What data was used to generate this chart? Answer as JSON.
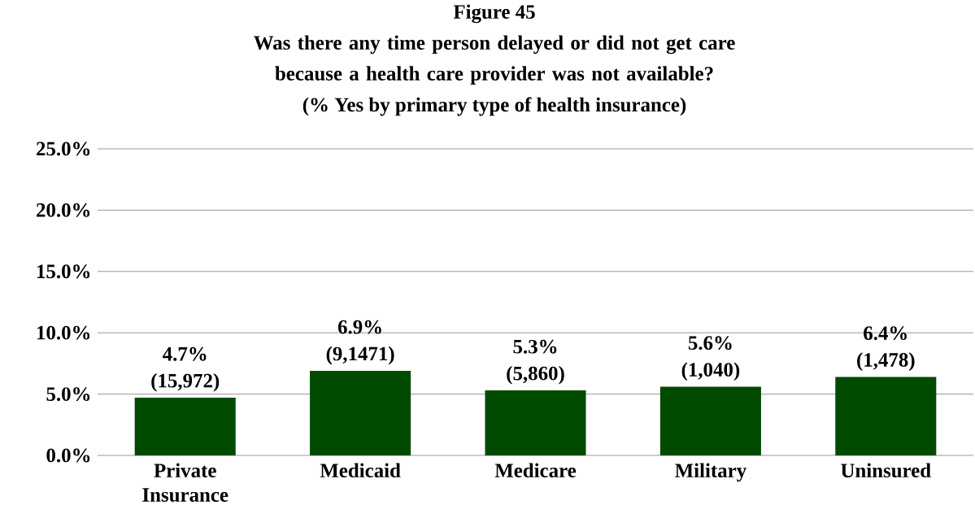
{
  "chart_data": {
    "type": "bar",
    "title": "Figure 45",
    "subtitle": "Was there any time person delayed or did not get care because a health care provider was not available?",
    "categories": [
      "Private Insurance",
      "Medicaid",
      "Medicare",
      "Military",
      "Uninsured"
    ],
    "values": [
      4.7,
      6.9,
      5.3,
      5.6,
      6.4
    ],
    "color": "#004b00",
    "value_labels": [
      "4.7%",
      "6.9%",
      "5.3%",
      "5.6%",
      "6.4%"
    ],
    "annotations": [
      "(% Yes by primary type of health insurance)",
      {
        "text": "(15,972)",
        "x": "Private Insurance",
        "y": 4.7
      },
      {
        "text": "(9,1471)",
        "x": "Medicaid",
        "y": 6.9
      },
      {
        "text": "(5,860)",
        "x": "Medicare",
        "y": 5.3
      },
      {
        "text": "(1,040)",
        "x": "Military",
        "y": 5.6
      },
      {
        "text": "(1,478)",
        "x": "Uninsured",
        "y": 6.4
      }
    ],
    "ylim": [
      0,
      25
    ],
    "yticks": [
      {
        "value": 0,
        "label": "0.0%"
      },
      {
        "value": 5,
        "label": "5.0%"
      },
      {
        "value": 10,
        "label": "10.0%"
      },
      {
        "value": 15,
        "label": "15.0%"
      },
      {
        "value": 20,
        "label": "20.0%"
      },
      {
        "value": 25,
        "label": "25.0%"
      }
    ],
    "grid": "y"
  }
}
